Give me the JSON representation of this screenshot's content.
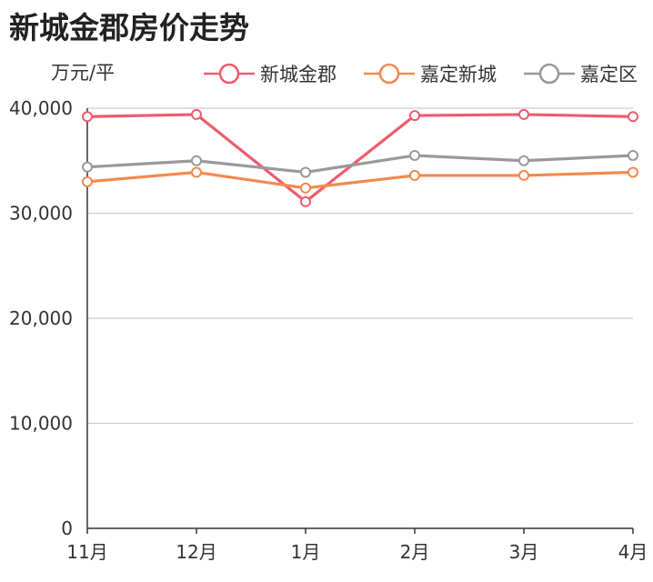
{
  "title": "新城金郡房价走势",
  "unit_label": "万元/平",
  "chart_data": {
    "type": "line",
    "title": "新城金郡房价走势",
    "ylabel": "万元/平",
    "xlabel": "",
    "categories": [
      "11月",
      "12月",
      "1月",
      "2月",
      "3月",
      "4月"
    ],
    "ylim": [
      0,
      40000
    ],
    "yticks": [
      "0",
      "10,000",
      "20,000",
      "30,000",
      "40,000"
    ],
    "ytick_values": [
      0,
      10000,
      20000,
      30000,
      40000
    ],
    "grid": true,
    "legend": "top-right",
    "series": [
      {
        "name": "新城金郡",
        "color": "#ee5c6d",
        "values": [
          39200,
          39400,
          31100,
          39300,
          39400,
          39200
        ]
      },
      {
        "name": "嘉定新城",
        "color": "#f3894f",
        "values": [
          33000,
          33900,
          32400,
          33600,
          33600,
          33900
        ]
      },
      {
        "name": "嘉定区",
        "color": "#999999",
        "values": [
          34400,
          35000,
          33900,
          35500,
          35000,
          35500
        ]
      }
    ]
  }
}
